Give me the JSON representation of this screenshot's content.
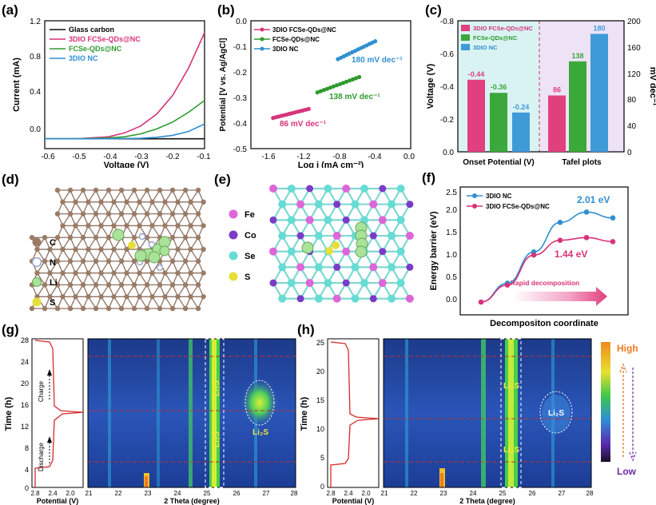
{
  "panel_a": {
    "label": "(a)",
    "chart_data": {
      "type": "line",
      "xlabel": "Voltage (V)",
      "ylabel": "Current (mA)",
      "xlim": [
        -0.6,
        -0.1
      ],
      "ylim": [
        -0.1,
        1.2
      ],
      "xticks": [
        "-0.6",
        "-0.5",
        "-0.4",
        "-0.3",
        "-0.2",
        "-0.1"
      ],
      "yticks": [
        "0.0",
        "0.4",
        "0.8",
        "1.2"
      ],
      "series": [
        {
          "name": "Glass carbon",
          "color": "#111111",
          "x": [
            -0.6,
            -0.5,
            -0.4,
            -0.3,
            -0.2,
            -0.1
          ],
          "y": [
            0,
            0,
            0,
            0,
            0,
            0
          ]
        },
        {
          "name": "3DIO FCSe-QDs@NC",
          "color": "#d6337a",
          "x": [
            -0.6,
            -0.5,
            -0.4,
            -0.35,
            -0.3,
            -0.25,
            -0.2,
            -0.15,
            -0.1
          ],
          "y": [
            0,
            0,
            0.02,
            0.06,
            0.13,
            0.25,
            0.44,
            0.72,
            1.08
          ]
        },
        {
          "name": "FCSe-QDs@NC",
          "color": "#2e9a2e",
          "x": [
            -0.6,
            -0.5,
            -0.4,
            -0.35,
            -0.3,
            -0.25,
            -0.2,
            -0.15,
            -0.1
          ],
          "y": [
            0,
            0,
            0.01,
            0.02,
            0.05,
            0.1,
            0.17,
            0.27,
            0.39
          ]
        },
        {
          "name": "3DIO NC",
          "color": "#2f8fd0",
          "x": [
            -0.6,
            -0.5,
            -0.4,
            -0.3,
            -0.25,
            -0.2,
            -0.15,
            -0.1
          ],
          "y": [
            0,
            0,
            0,
            0.005,
            0.015,
            0.035,
            0.075,
            0.15
          ]
        }
      ]
    }
  },
  "panel_b": {
    "label": "(b)",
    "chart_data": {
      "type": "scatter",
      "xlabel": "Log i (mA cm⁻²)",
      "ylabel": "Potential [V vs. Ag/AgCl]",
      "xlim": [
        -1.8,
        0.0
      ],
      "ylim": [
        -0.5,
        0.0
      ],
      "xticks": [
        "-1.6",
        "-1.2",
        "-0.8",
        "-0.4",
        "0.0"
      ],
      "yticks": [
        "0.0",
        "-0.1",
        "-0.2",
        "-0.3",
        "-0.4",
        "-0.5"
      ],
      "series": [
        {
          "name": "3DIO FCSe-QDs@NC",
          "color": "#d6337a",
          "x": [
            -1.55,
            -1.15
          ],
          "y": [
            -0.38,
            -0.345
          ],
          "annotation": "86 mV dec⁻¹"
        },
        {
          "name": "FCSe-QDs@NC",
          "color": "#2e9a2e",
          "x": [
            -1.05,
            -0.58
          ],
          "y": [
            -0.28,
            -0.22
          ],
          "annotation": "138 mV dec⁻¹"
        },
        {
          "name": "3DIO NC",
          "color": "#2f8fd0",
          "x": [
            -0.82,
            -0.4
          ],
          "y": [
            -0.15,
            -0.08
          ],
          "annotation": "180 mV dec⁻¹"
        }
      ]
    }
  },
  "panel_c": {
    "label": "(c)",
    "chart_data": {
      "type": "bar",
      "ylabel_left": "Voltage (V)",
      "ylabel_right": "mV dec⁻¹",
      "yticks_left": [
        "-0.8",
        "-0.6",
        "-0.4",
        "-0.2",
        "0.0"
      ],
      "yticks_right": [
        "200",
        "160",
        "120",
        "80",
        "40",
        "0"
      ],
      "groups": [
        "Onset Potential (V)",
        "Tafel plots"
      ],
      "legend": [
        "3DIO FCSe-QDs@NC",
        "FCSe-QDs@NC",
        "3DIO NC"
      ],
      "colors": [
        "#e0407d",
        "#3aa83a",
        "#3f9ad8"
      ],
      "onset": [
        -0.44,
        -0.36,
        -0.24
      ],
      "onset_labels": [
        "-0.44",
        "-0.36",
        "-0.24"
      ],
      "tafel": [
        86,
        138,
        180
      ],
      "tafel_labels": [
        "86",
        "138",
        "180"
      ]
    }
  },
  "panel_d": {
    "label": "(d)",
    "legend": [
      {
        "name": "C",
        "color": "#9a7b66"
      },
      {
        "name": "N",
        "color": "#c9cde8"
      },
      {
        "name": "Li",
        "color": "#a9e39a"
      },
      {
        "name": "S",
        "color": "#e6df3a"
      }
    ]
  },
  "panel_e": {
    "label": "(e)",
    "legend": [
      {
        "name": "Fe",
        "color": "#dd66d8"
      },
      {
        "name": "Co",
        "color": "#7a3cc8"
      },
      {
        "name": "Se",
        "color": "#66dcd4"
      },
      {
        "name": "S",
        "color": "#e6df3a"
      }
    ]
  },
  "panel_f": {
    "label": "(f)",
    "chart_data": {
      "type": "line",
      "xlabel": "Decompositon coordinate",
      "ylabel": "Energy barrier (eV)",
      "ylim": [
        -0.1,
        2.6
      ],
      "yticks": [
        "0.0",
        "0.5",
        "1.0",
        "1.5",
        "2.0",
        "2.5"
      ],
      "series": [
        {
          "name": "3DIO NC",
          "color": "#2f8fd0",
          "x": [
            0,
            1,
            2,
            3,
            4,
            5
          ],
          "y": [
            0,
            0.42,
            1.12,
            1.78,
            2.01,
            1.88
          ],
          "annotation": "2.01 eV"
        },
        {
          "name": "3DIO FCSe-QDs@NC",
          "color": "#d6337a",
          "x": [
            0,
            1,
            2,
            3,
            4,
            5
          ],
          "y": [
            0,
            0.38,
            1.05,
            1.38,
            1.44,
            1.35
          ],
          "annotation": "1.44 eV"
        }
      ],
      "arrow_text": "Rapid decomposition"
    }
  },
  "panel_g": {
    "label": "(g)",
    "time_label": "Time (h)",
    "time_ticks": [
      "0",
      "4",
      "8",
      "12",
      "16",
      "20",
      "24",
      "28"
    ],
    "potential_label": "Potential (V)",
    "potential_ticks": [
      "2.8",
      "2.4",
      "2.0"
    ],
    "theta_label": "2 Theta (degree)",
    "theta_ticks": [
      "21",
      "22",
      "23",
      "24",
      "25",
      "26",
      "27",
      "28"
    ],
    "charge": "Charge",
    "discharge": "Discharge",
    "species": [
      "Li₂S",
      "Li₂S",
      "Li₂S"
    ]
  },
  "panel_h": {
    "label": "(h)",
    "time_label": "Time (h)",
    "time_ticks": [
      "0",
      "5",
      "10",
      "15",
      "20",
      "25"
    ],
    "potential_label": "Potential (V)",
    "potential_ticks": [
      "2.8",
      "2.4",
      "2.0"
    ],
    "theta_label": "2 Theta (degree)",
    "theta_ticks": [
      "21",
      "22",
      "23",
      "24",
      "25",
      "26",
      "27",
      "28"
    ],
    "species": [
      "Li₂S",
      "Li₂S",
      "Li₂S"
    ]
  },
  "colorbar": {
    "high": "High",
    "low": "Low"
  }
}
